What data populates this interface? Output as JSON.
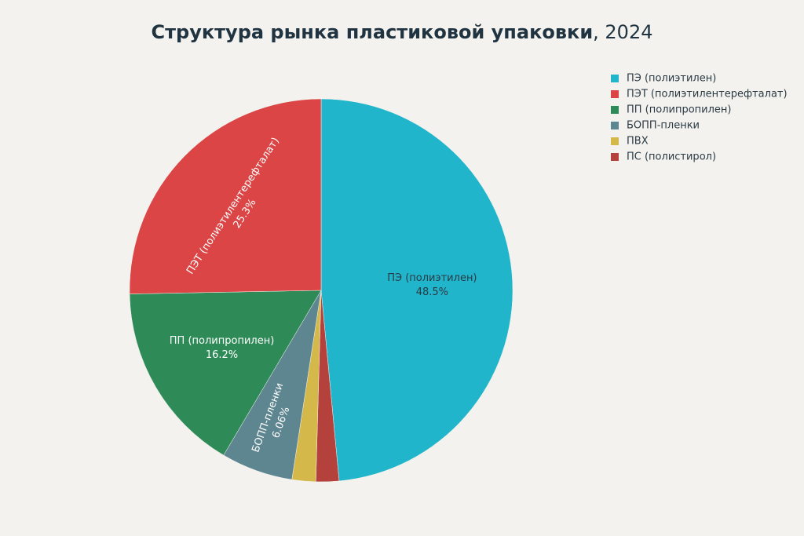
{
  "chart_data": {
    "type": "pie",
    "title": [
      "Структура рынка пластиковой упаковки",
      ", 2024"
    ],
    "categories": [
      "ПЭ (полиэтилен)",
      "ПЭТ (полиэтилентерефталат)",
      "ПП (полипропилен)",
      "БОПП-пленки",
      "ПВХ",
      "ПС (полистирол)"
    ],
    "values": [
      48.5,
      25.3,
      16.2,
      6.06,
      2.0,
      1.94
    ],
    "value_labels": [
      "48.5%",
      "25.3%",
      "16.2%",
      "6.06%",
      null,
      null
    ],
    "colors": [
      "#21b5cb",
      "#db4545",
      "#2e8b57",
      "#5e8690",
      "#d4b84a",
      "#b5413c"
    ],
    "legend": "top-right"
  }
}
